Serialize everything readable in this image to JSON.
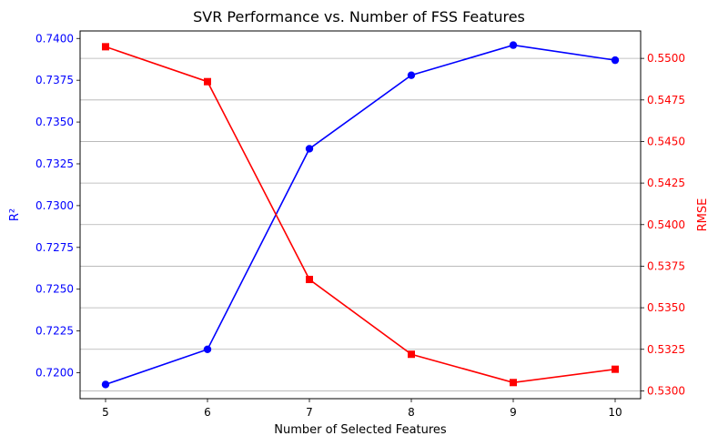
{
  "chart_data": {
    "type": "line",
    "title": "SVR Performance vs. Number of FSS Features",
    "xlabel": "Number of Selected Features",
    "ylabel_left": "R²",
    "ylabel_right": "RMSE",
    "x": [
      5,
      6,
      7,
      8,
      9,
      10
    ],
    "xlim": [
      4.75,
      10.25
    ],
    "grid": "horizontal, right axis",
    "left_axis": {
      "color": "#0000ff",
      "lim": [
        0.71845,
        0.74045
      ],
      "ticks": [
        0.72,
        0.7225,
        0.725,
        0.7275,
        0.73,
        0.7325,
        0.735,
        0.7375,
        0.74
      ],
      "tick_labels": [
        "0.7200",
        "0.7225",
        "0.7250",
        "0.7275",
        "0.7300",
        "0.7325",
        "0.7350",
        "0.7375",
        "0.7400"
      ]
    },
    "right_axis": {
      "color": "#ff0000",
      "lim": [
        0.52953,
        0.55165
      ],
      "ticks": [
        0.53,
        0.5325,
        0.535,
        0.5375,
        0.54,
        0.5425,
        0.545,
        0.5475,
        0.55
      ],
      "tick_labels": [
        "0.5300",
        "0.5325",
        "0.5350",
        "0.5375",
        "0.5400",
        "0.5425",
        "0.5450",
        "0.5475",
        "0.5500"
      ]
    },
    "series": [
      {
        "axis": "left",
        "color": "#0000ff",
        "marker": "circle",
        "values": [
          0.7193,
          0.7214,
          0.7334,
          0.7378,
          0.7396,
          0.7387
        ]
      },
      {
        "axis": "right",
        "color": "#ff0000",
        "marker": "square",
        "values": [
          0.5507,
          0.5486,
          0.5367,
          0.5322,
          0.5305,
          0.5313
        ]
      }
    ]
  }
}
